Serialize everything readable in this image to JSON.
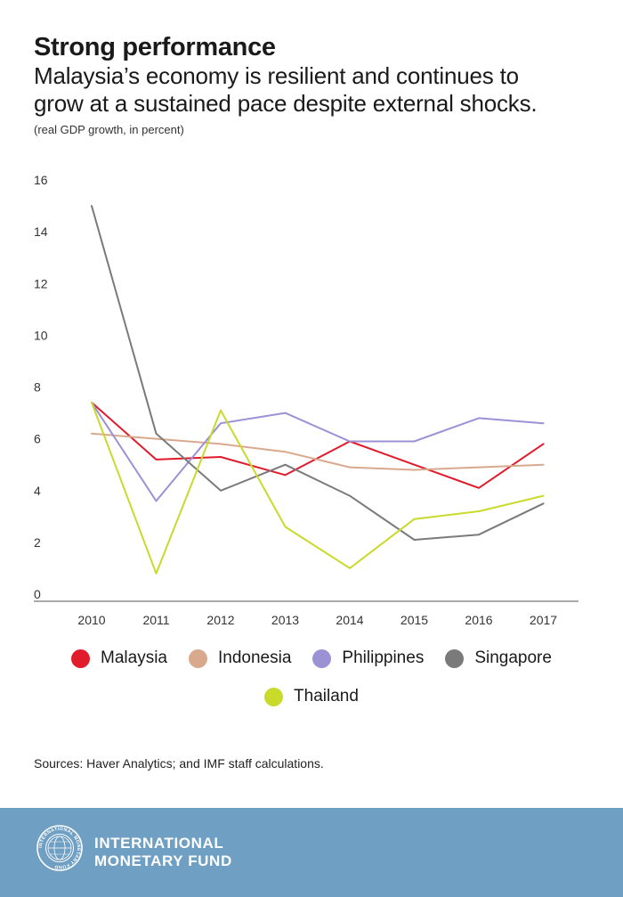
{
  "header": {
    "title": "Strong performance",
    "subtitle_line1": "Malaysia’s economy is resilient and continues to",
    "subtitle_line2": "grow at a sustained pace despite external shocks.",
    "units": "(real GDP growth, in percent)"
  },
  "chart_data": {
    "type": "line",
    "x": [
      "2010",
      "2011",
      "2012",
      "2013",
      "2014",
      "2015",
      "2016",
      "2017"
    ],
    "ylim": [
      0,
      16
    ],
    "yticks": [
      "0",
      "2",
      "4",
      "6",
      "8",
      "10",
      "12",
      "14",
      "16"
    ],
    "grid": false,
    "legend_position": "bottom",
    "series": [
      {
        "name": "Malaysia",
        "color": "#e01b2c",
        "values": [
          7.4,
          5.2,
          5.3,
          4.6,
          5.9,
          5.0,
          4.1,
          5.8
        ]
      },
      {
        "name": "Indonesia",
        "color": "#d8a98c",
        "values": [
          6.2,
          6.0,
          5.8,
          5.5,
          4.9,
          4.8,
          4.9,
          5.0
        ]
      },
      {
        "name": "Philippines",
        "color": "#9b92d6",
        "values": [
          7.4,
          3.6,
          6.6,
          7.0,
          5.9,
          5.9,
          6.8,
          6.6
        ]
      },
      {
        "name": "Singapore",
        "color": "#7a7a7a",
        "values": [
          15.0,
          6.2,
          4.0,
          5.0,
          3.8,
          2.1,
          2.3,
          3.5
        ]
      },
      {
        "name": "Thailand",
        "color": "#c9da2a",
        "values": [
          7.4,
          0.8,
          7.1,
          2.6,
          1.0,
          2.9,
          3.2,
          3.8
        ]
      }
    ]
  },
  "source": "Sources: Haver Analytics; and IMF staff calculations.",
  "footer": {
    "org_line1": "INTERNATIONAL",
    "org_line2": "MONETARY FUND",
    "seal_text": "INTERNATIONAL MONETARY FUND"
  }
}
